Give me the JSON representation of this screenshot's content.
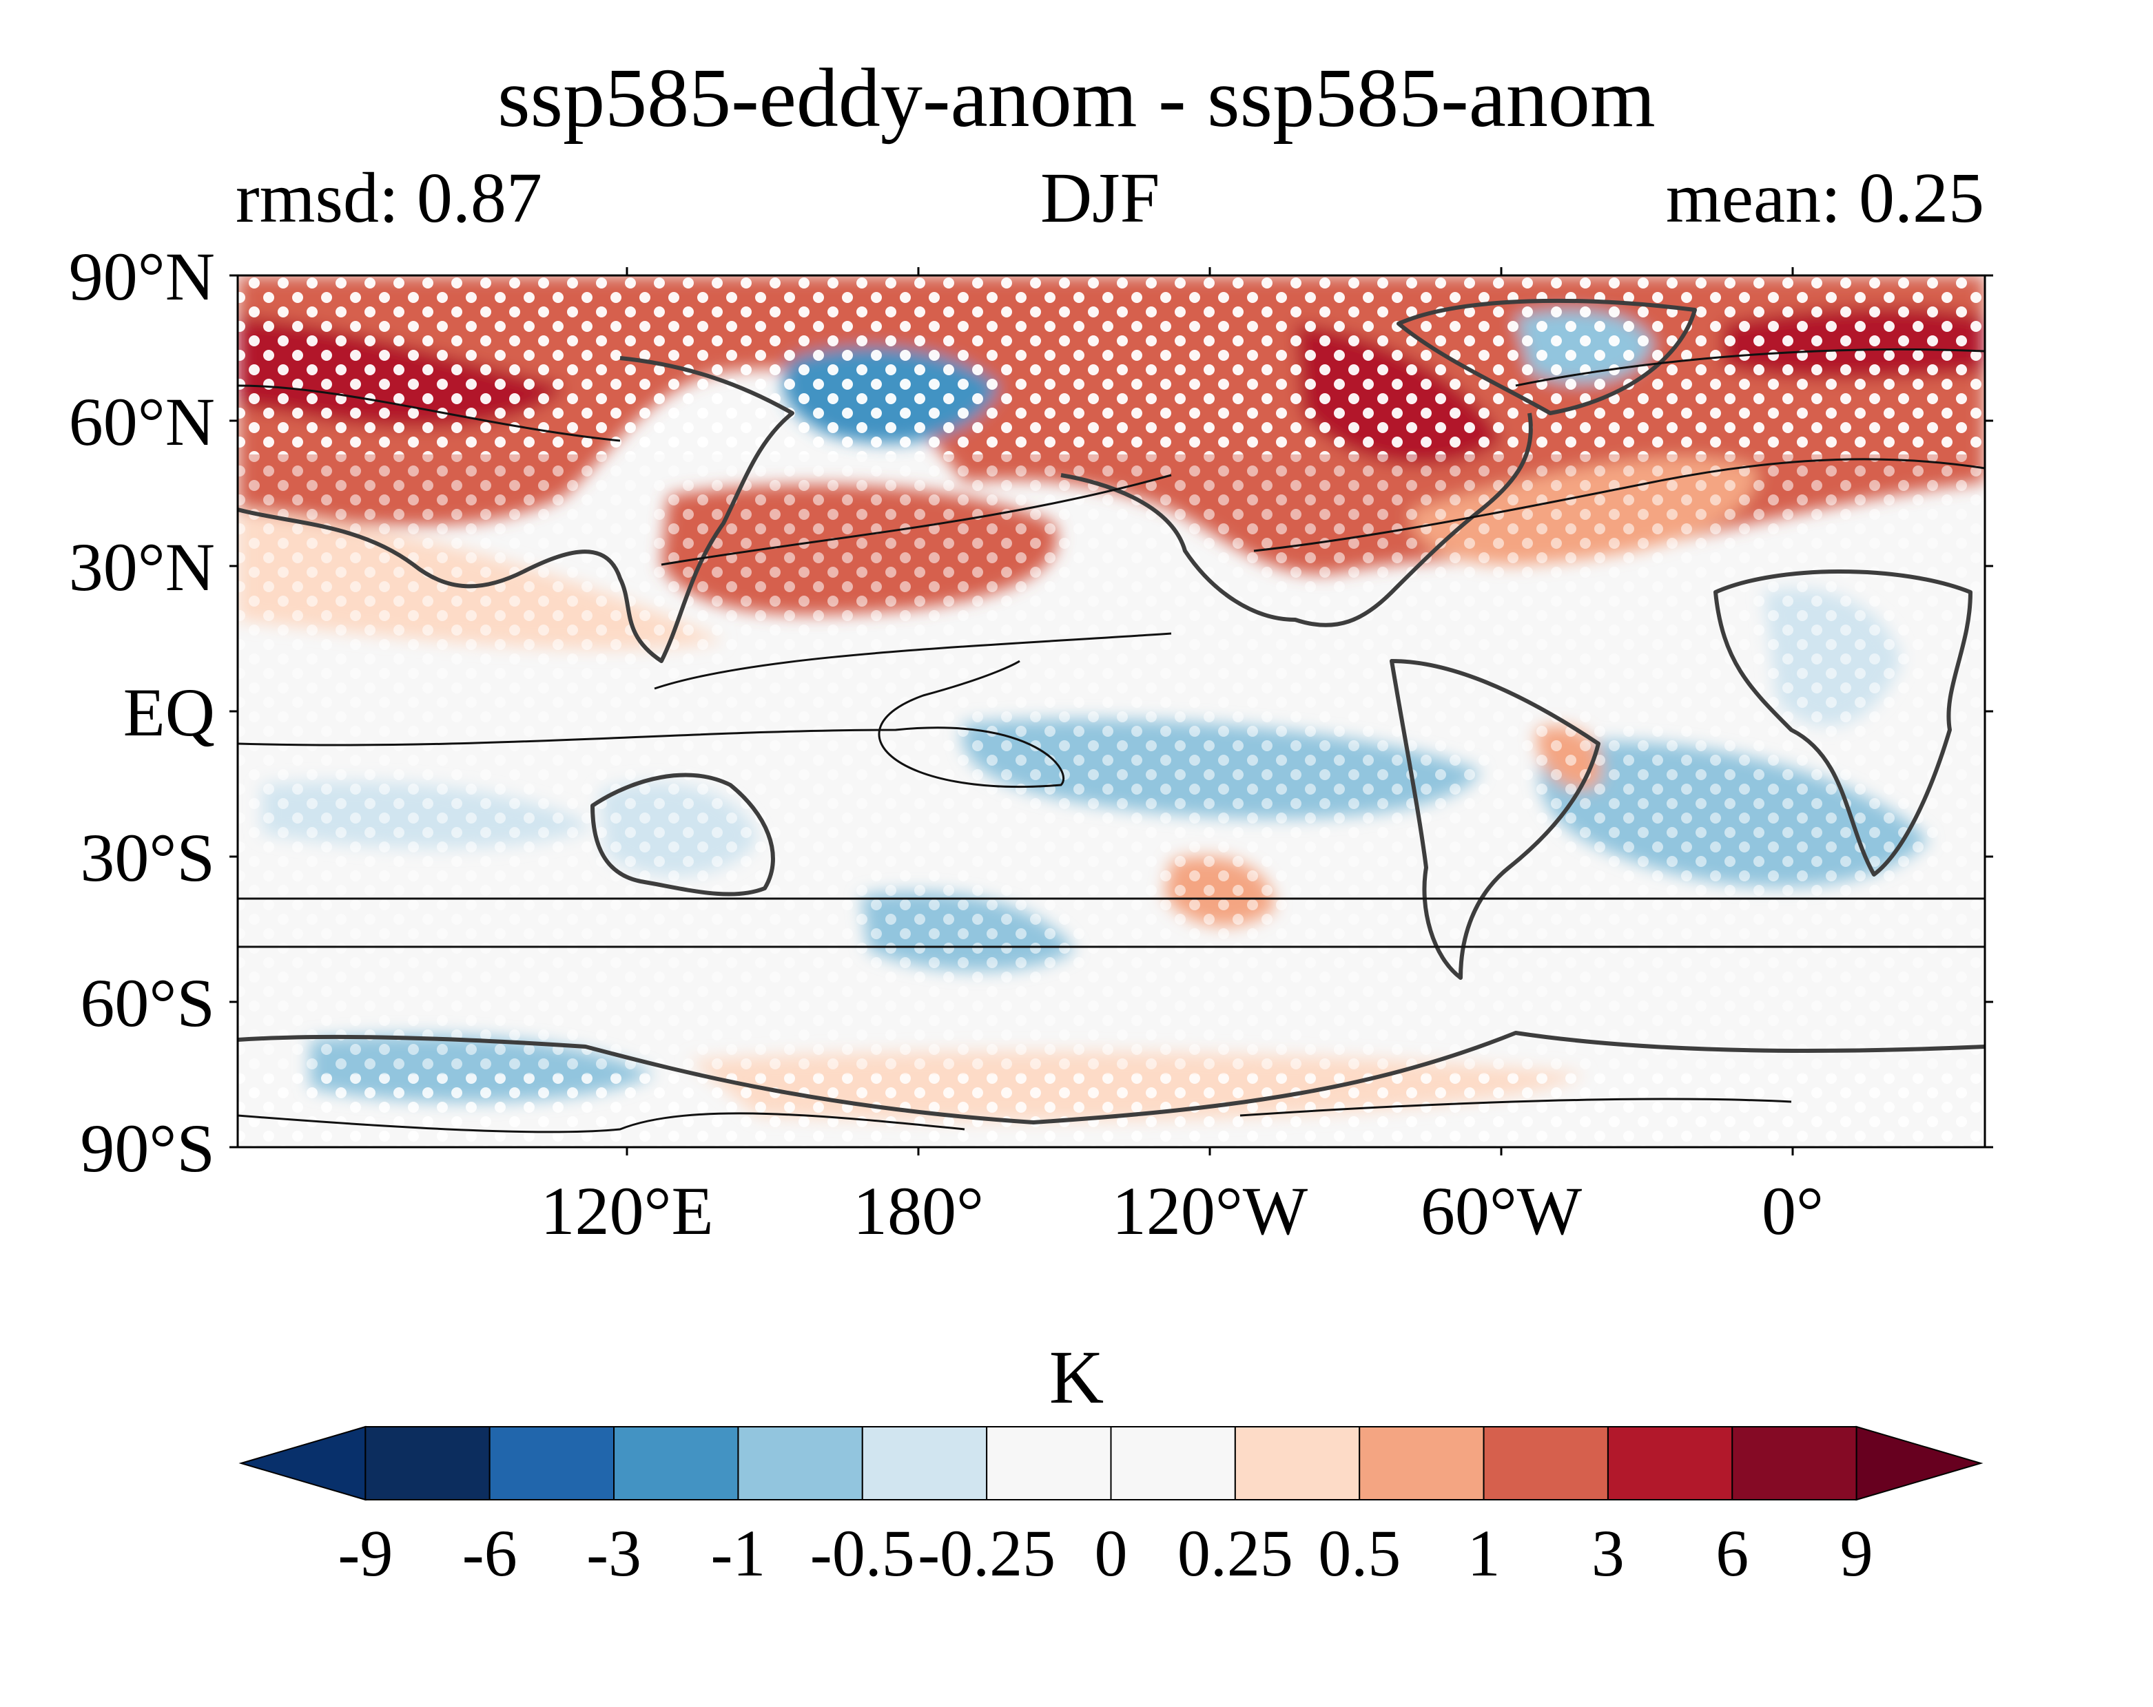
{
  "figure": {
    "title": "ssp585-eddy-anom - ssp585-anom",
    "left_stat": "rmsd: 0.87",
    "center_label": "DJF",
    "right_stat": "mean: 0.25"
  },
  "map": {
    "projection": "equirectangular",
    "central_longitude": "Pacific-centered",
    "lat_ticks": [
      "90°N",
      "60°N",
      "30°N",
      "EQ",
      "30°S",
      "60°S",
      "90°S"
    ],
    "lon_ticks": [
      "120°E",
      "180°",
      "120°W",
      "60°W",
      "0°"
    ],
    "stippling": "white dots",
    "contours": "black lines"
  },
  "colorbar": {
    "unit": "K",
    "extend": "both",
    "levels": [
      "-9",
      "-6",
      "-3",
      "-1",
      "-0.5",
      "-0.25",
      "0",
      "0.25",
      "0.5",
      "1",
      "3",
      "6",
      "9"
    ],
    "colors": [
      "#08306b",
      "#0c2d5e",
      "#2166ac",
      "#4393c3",
      "#92c5de",
      "#d1e5f0",
      "#f7f7f7",
      "#f7f7f7",
      "#fddbc7",
      "#f4a582",
      "#d6604d",
      "#b2182b",
      "#850a25",
      "#67001f"
    ]
  }
}
